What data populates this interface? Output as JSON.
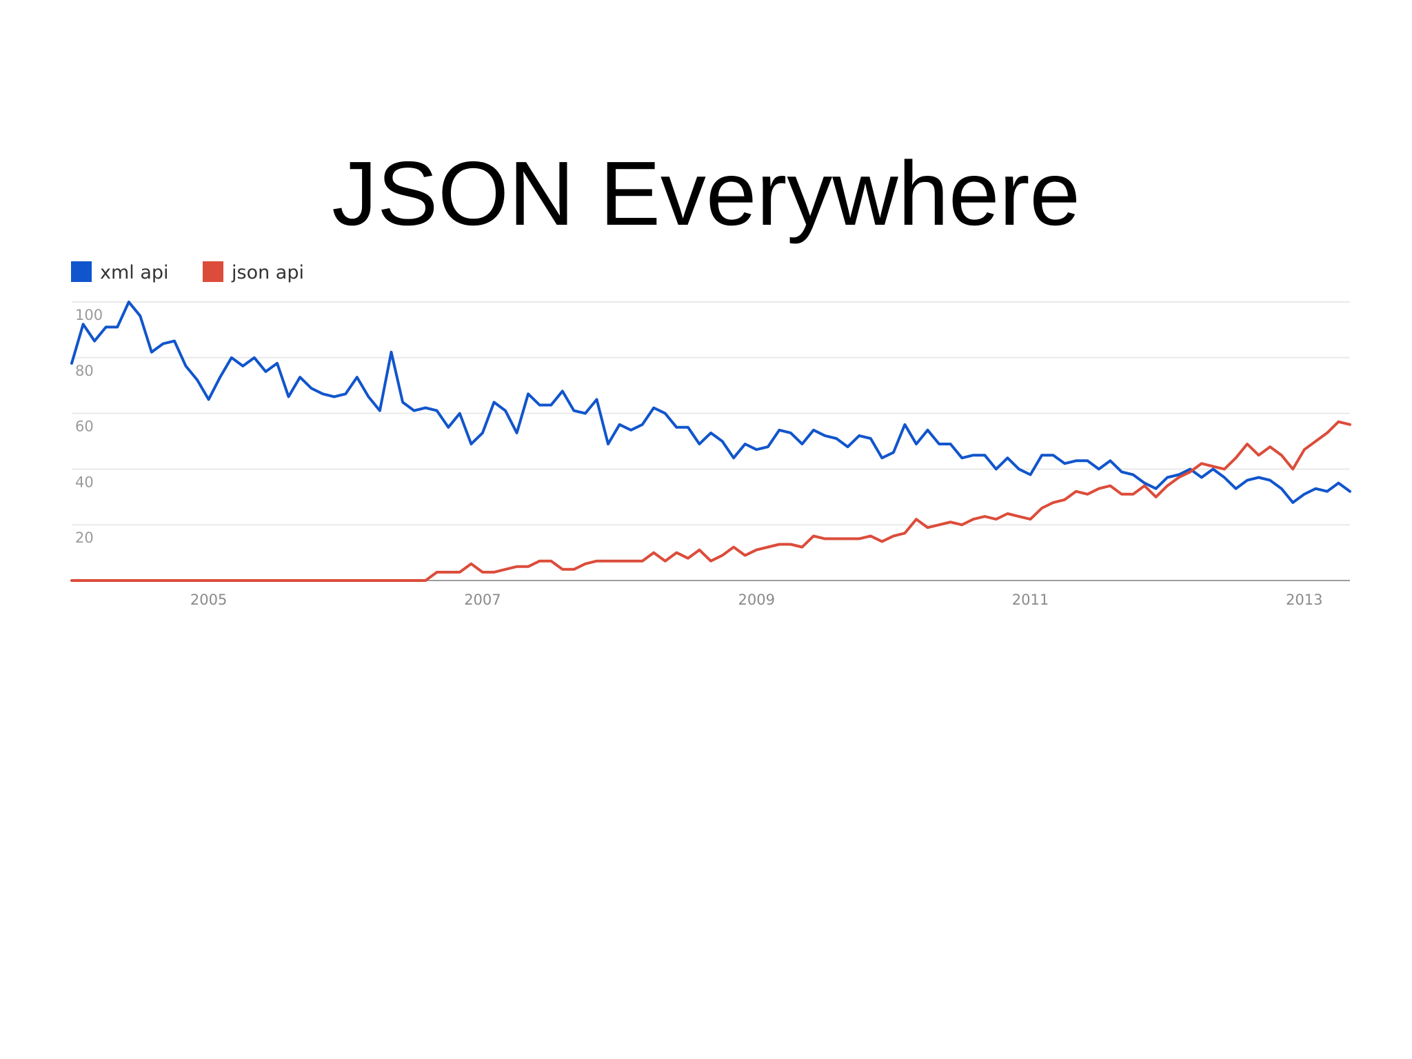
{
  "slide": {
    "title": "JSON Everywhere"
  },
  "chart_data": {
    "type": "line",
    "title": "",
    "xlabel": "",
    "ylabel": "",
    "x_start": "2004-01",
    "x_step": "month",
    "xlim": [
      "2004-01",
      "2013-05"
    ],
    "ylim": [
      0,
      100
    ],
    "x_ticks": [
      "2005",
      "2007",
      "2009",
      "2011",
      "2013"
    ],
    "y_ticks": [
      "20",
      "40",
      "60",
      "80",
      "100"
    ],
    "grid": true,
    "legend": "top-left",
    "series": [
      {
        "name": "xml api",
        "color": "#1155cc",
        "values": [
          78,
          92,
          86,
          91,
          91,
          100,
          95,
          82,
          85,
          86,
          77,
          72,
          65,
          73,
          80,
          77,
          80,
          75,
          78,
          66,
          73,
          69,
          67,
          66,
          67,
          73,
          66,
          61,
          82,
          64,
          61,
          62,
          61,
          55,
          60,
          49,
          53,
          64,
          61,
          53,
          67,
          63,
          63,
          68,
          61,
          60,
          65,
          49,
          56,
          54,
          56,
          62,
          60,
          55,
          55,
          49,
          53,
          50,
          44,
          49,
          47,
          48,
          54,
          53,
          49,
          54,
          52,
          51,
          48,
          52,
          51,
          44,
          46,
          56,
          49,
          54,
          49,
          49,
          44,
          45,
          45,
          40,
          44,
          40,
          38,
          45,
          45,
          42,
          43,
          43,
          40,
          43,
          39,
          38,
          35,
          33,
          37,
          38,
          40,
          37,
          40,
          37,
          33,
          36,
          37,
          36,
          33,
          28,
          31,
          33,
          32,
          35,
          32
        ]
      },
      {
        "name": "json api",
        "color": "#dc4c3a",
        "values": [
          0,
          0,
          0,
          0,
          0,
          0,
          0,
          0,
          0,
          0,
          0,
          0,
          0,
          0,
          0,
          0,
          0,
          0,
          0,
          0,
          0,
          0,
          0,
          0,
          0,
          0,
          0,
          0,
          0,
          0,
          0,
          0,
          3,
          3,
          3,
          6,
          3,
          3,
          4,
          5,
          5,
          7,
          7,
          4,
          4,
          6,
          7,
          7,
          7,
          7,
          7,
          10,
          7,
          10,
          8,
          11,
          7,
          9,
          12,
          9,
          11,
          12,
          13,
          13,
          12,
          16,
          15,
          15,
          15,
          15,
          16,
          14,
          16,
          17,
          22,
          19,
          20,
          21,
          20,
          22,
          23,
          22,
          24,
          23,
          22,
          26,
          28,
          29,
          32,
          31,
          33,
          34,
          31,
          31,
          34,
          30,
          34,
          37,
          39,
          42,
          41,
          40,
          44,
          49,
          45,
          48,
          45,
          40,
          47,
          50,
          53,
          57,
          56
        ]
      }
    ]
  }
}
